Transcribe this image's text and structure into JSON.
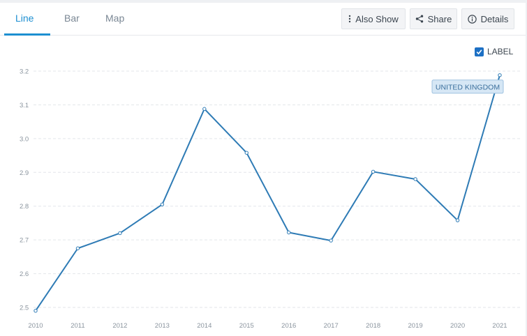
{
  "tabs": [
    {
      "label": "Line",
      "active": true
    },
    {
      "label": "Bar",
      "active": false
    },
    {
      "label": "Map",
      "active": false
    }
  ],
  "toolbar": {
    "also_show": {
      "label": "Also Show",
      "icon": "vertical-dots-icon"
    },
    "share": {
      "label": "Share",
      "icon": "share-icon"
    },
    "details": {
      "label": "Details",
      "icon": "info-icon"
    }
  },
  "label_toggle": {
    "label": "LABEL",
    "checked": true
  },
  "colors": {
    "accent": "#1d8fd1",
    "line": "#2e7bb5",
    "grid": "#e3e6ea",
    "label_bg": "#d6e7f5"
  },
  "chart_data": {
    "type": "line",
    "x": [
      "2010",
      "2011",
      "2012",
      "2013",
      "2014",
      "2015",
      "2016",
      "2017",
      "2018",
      "2019",
      "2020",
      "2021"
    ],
    "series": [
      {
        "name": "UNITED KINGDOM",
        "values": [
          2.49,
          2.675,
          2.72,
          2.805,
          3.088,
          2.958,
          2.722,
          2.698,
          2.902,
          2.88,
          2.758,
          3.188
        ]
      }
    ],
    "yticks": [
      2.5,
      2.6,
      2.7,
      2.8,
      2.9,
      3.0,
      3.1,
      3.2
    ],
    "ylim": [
      2.49,
      3.2
    ],
    "grid": true
  }
}
